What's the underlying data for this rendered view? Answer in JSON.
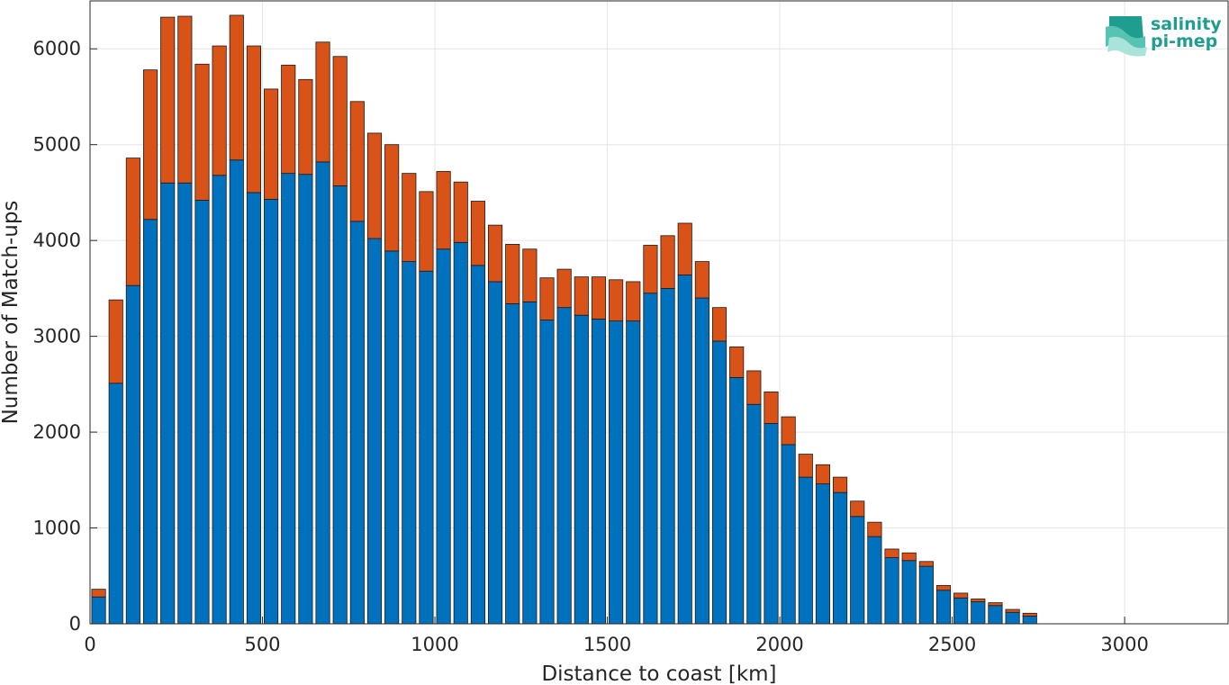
{
  "logo": {
    "line1": "salinity",
    "line2": "pi-mep"
  },
  "chart_data": {
    "type": "bar",
    "stacked": true,
    "xlabel": "Distance to coast [km]",
    "ylabel": "Number of Match-ups",
    "xlim": [
      0,
      3300
    ],
    "ylim": [
      0,
      6500
    ],
    "xticks": [
      0,
      500,
      1000,
      1500,
      2000,
      2500,
      3000
    ],
    "yticks": [
      0,
      1000,
      2000,
      3000,
      4000,
      5000,
      6000
    ],
    "grid": true,
    "bin_width": 50,
    "x": [
      25,
      75,
      125,
      175,
      225,
      275,
      325,
      375,
      425,
      475,
      525,
      575,
      625,
      675,
      725,
      775,
      825,
      875,
      925,
      975,
      1025,
      1075,
      1125,
      1175,
      1225,
      1275,
      1325,
      1375,
      1425,
      1475,
      1525,
      1575,
      1625,
      1675,
      1725,
      1775,
      1825,
      1875,
      1925,
      1975,
      2025,
      2075,
      2125,
      2175,
      2225,
      2275,
      2325,
      2375,
      2425,
      2475,
      2525,
      2575,
      2625,
      2675,
      2725
    ],
    "series": [
      {
        "color": "#0072bd",
        "values": [
          280,
          2510,
          3530,
          4220,
          4600,
          4600,
          4420,
          4680,
          4840,
          4500,
          4430,
          4700,
          4690,
          4820,
          4570,
          4200,
          4020,
          3890,
          3780,
          3680,
          3910,
          3980,
          3740,
          3570,
          3340,
          3360,
          3170,
          3300,
          3220,
          3180,
          3160,
          3160,
          3450,
          3500,
          3640,
          3400,
          2950,
          2570,
          2290,
          2090,
          1870,
          1530,
          1460,
          1370,
          1120,
          910,
          690,
          660,
          600,
          350,
          270,
          230,
          190,
          120,
          80
        ]
      },
      {
        "color": "#d95319",
        "values": [
          80,
          870,
          1330,
          1560,
          1730,
          1740,
          1420,
          1350,
          1510,
          1530,
          1150,
          1130,
          990,
          1250,
          1350,
          1250,
          1100,
          1110,
          920,
          830,
          810,
          630,
          670,
          590,
          620,
          550,
          440,
          400,
          400,
          440,
          430,
          410,
          500,
          550,
          540,
          380,
          350,
          320,
          350,
          330,
          290,
          240,
          200,
          160,
          160,
          150,
          90,
          80,
          50,
          50,
          50,
          30,
          30,
          30,
          30
        ]
      }
    ]
  }
}
